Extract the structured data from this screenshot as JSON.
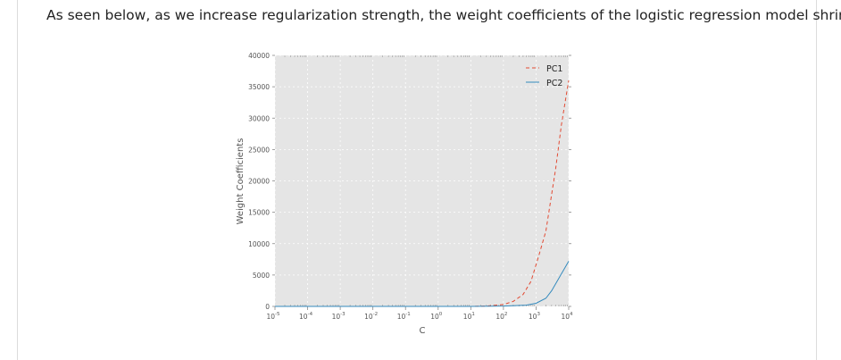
{
  "intro_text": "As seen below, as we increase regularization strength, the weight coefficients of the logistic regression model shrink.",
  "chart_data": {
    "type": "line",
    "xlabel": "C",
    "ylabel": "Weight Coefficients",
    "xscale": "log",
    "xlim": [
      1e-05,
      10000
    ],
    "ylim": [
      0,
      40000
    ],
    "x_ticks": [
      {
        "value": 1e-05,
        "base": "10",
        "exp": "-5"
      },
      {
        "value": 0.0001,
        "base": "10",
        "exp": "-4"
      },
      {
        "value": 0.001,
        "base": "10",
        "exp": "-3"
      },
      {
        "value": 0.01,
        "base": "10",
        "exp": "-2"
      },
      {
        "value": 0.1,
        "base": "10",
        "exp": "-1"
      },
      {
        "value": 1,
        "base": "10",
        "exp": "0"
      },
      {
        "value": 10,
        "base": "10",
        "exp": "1"
      },
      {
        "value": 100,
        "base": "10",
        "exp": "2"
      },
      {
        "value": 1000,
        "base": "10",
        "exp": "3"
      },
      {
        "value": 10000,
        "base": "10",
        "exp": "4"
      }
    ],
    "y_ticks": [
      "0",
      "5000",
      "10000",
      "15000",
      "20000",
      "25000",
      "30000",
      "35000",
      "40000"
    ],
    "grid": true,
    "legend_position": "top-right",
    "series": [
      {
        "name": "PC1",
        "color": "#e24a33",
        "style": "dashed",
        "points": [
          [
            1e-05,
            0
          ],
          [
            0.0001,
            0
          ],
          [
            0.001,
            0
          ],
          [
            0.01,
            0
          ],
          [
            0.1,
            0
          ],
          [
            1,
            0
          ],
          [
            10,
            0
          ],
          [
            31.6,
            60
          ],
          [
            100,
            300
          ],
          [
            200,
            800
          ],
          [
            400,
            1900
          ],
          [
            700,
            4000
          ],
          [
            1200,
            8000
          ],
          [
            2000,
            12000
          ],
          [
            4000,
            22000
          ],
          [
            6000,
            29000
          ],
          [
            10000,
            36000
          ]
        ]
      },
      {
        "name": "PC2",
        "color": "#348abd",
        "style": "solid",
        "points": [
          [
            1e-05,
            0
          ],
          [
            0.0001,
            0
          ],
          [
            0.001,
            0
          ],
          [
            0.01,
            0
          ],
          [
            0.1,
            0
          ],
          [
            1,
            0
          ],
          [
            10,
            0
          ],
          [
            100,
            50
          ],
          [
            500,
            200
          ],
          [
            1000,
            500
          ],
          [
            2000,
            1300
          ],
          [
            3000,
            2500
          ],
          [
            10000,
            7200
          ]
        ]
      }
    ]
  }
}
